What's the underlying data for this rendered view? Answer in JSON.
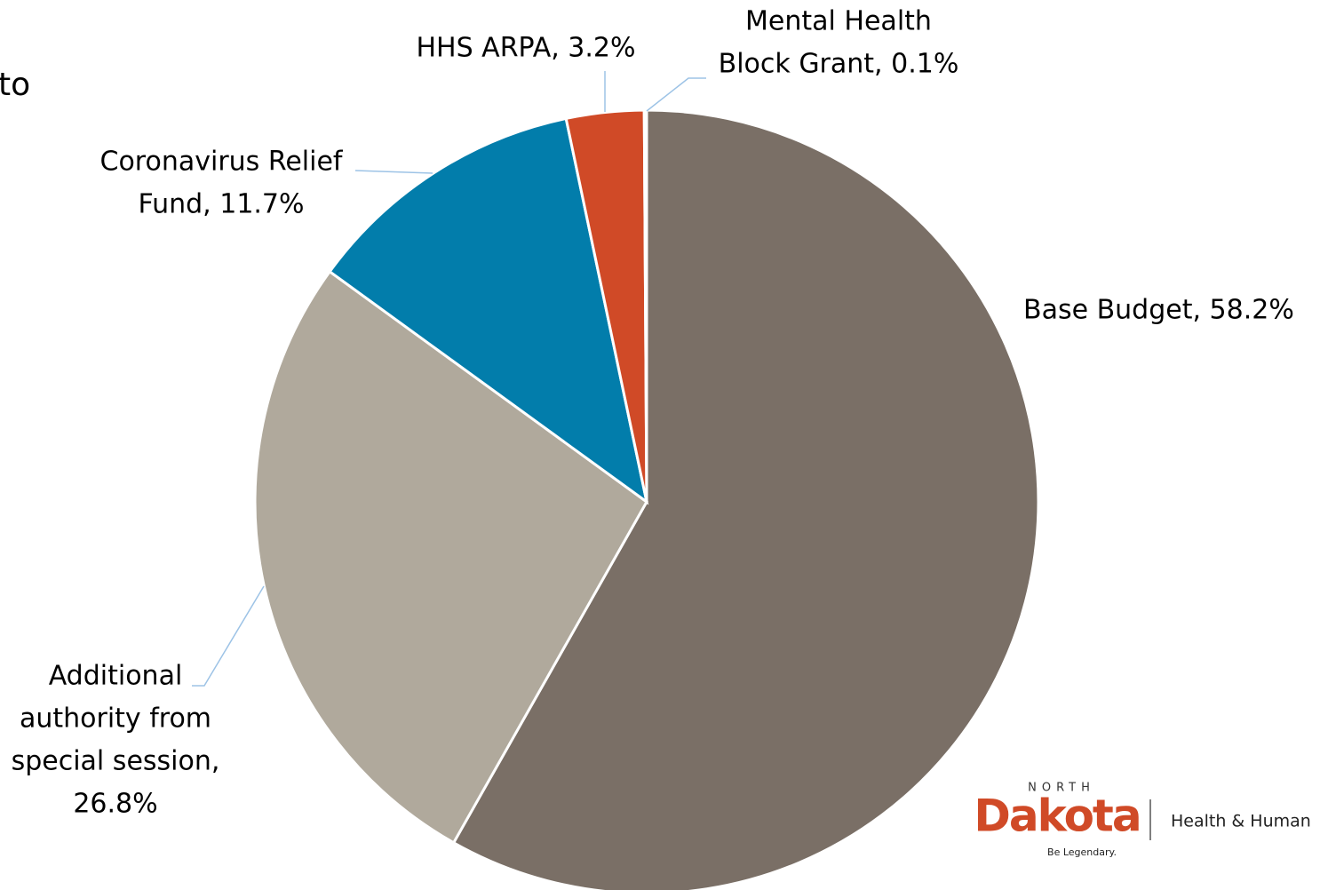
{
  "slide_text": "to",
  "chart_data": {
    "type": "pie",
    "values": [
      58.2,
      26.8,
      11.7,
      3.2,
      0.1
    ],
    "value_labels": [
      [
        "Base Budget, 58.2%"
      ],
      [
        "Additional",
        "authority from",
        "special session,",
        "26.8%"
      ],
      [
        "Coronavirus Relief",
        "Fund, 11.7%"
      ],
      [
        "HHS ARPA, 3.2%"
      ],
      [
        "Mental Health",
        "Block Grant, 0.1%"
      ]
    ],
    "colors": [
      "#7a6f66",
      "#b0a99c",
      "#027dab",
      "#d04a27",
      "#a5a5a5"
    ]
  },
  "logo": {
    "state_top": "NORTH",
    "state": "Dakota",
    "department": "Health & Human",
    "tagline": "Be Legendary."
  }
}
